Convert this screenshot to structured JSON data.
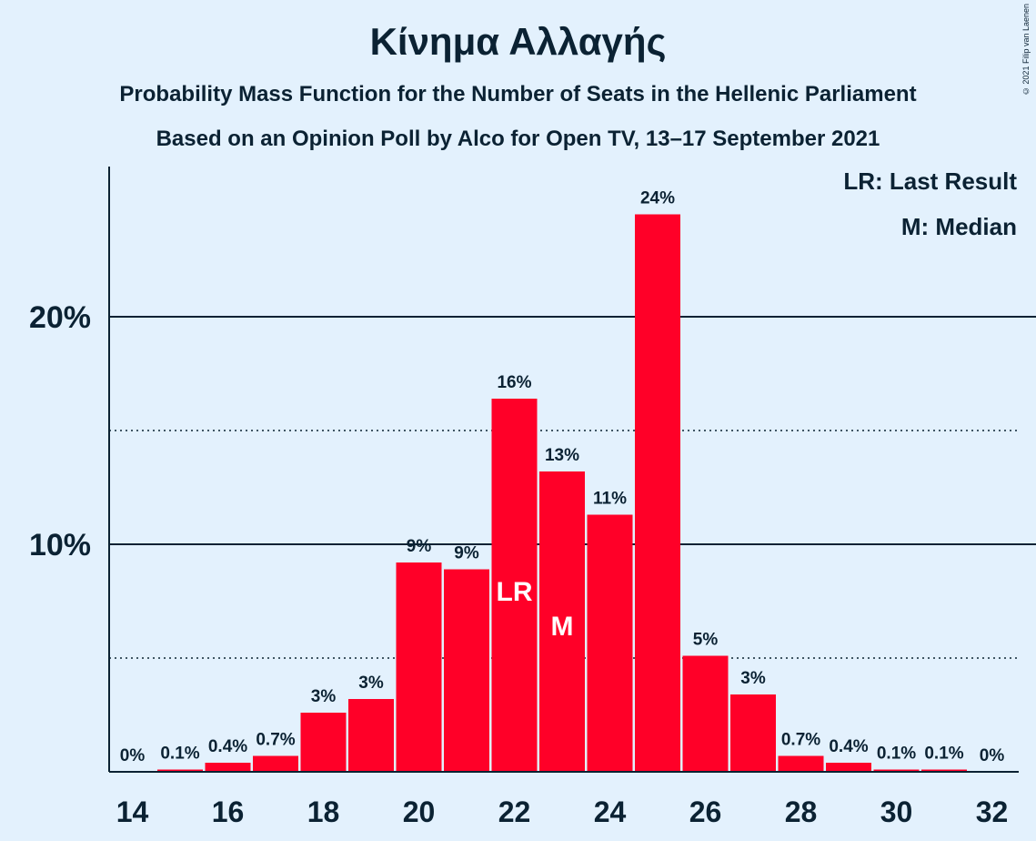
{
  "header": {
    "title": "Κίνημα Αλλαγής",
    "subtitle1": "Probability Mass Function for the Number of Seats in the Hellenic Parliament",
    "subtitle2": "Based on an Opinion Poll by Alco for Open TV, 13–17 September 2021",
    "copyright": "© 2021 Filip van Laenen"
  },
  "legend": {
    "lr": "LR: Last Result",
    "m": "M: Median"
  },
  "colors": {
    "bar": "#ff0028",
    "background": "#e3f1fd",
    "text": "#0b2233"
  },
  "chart_data": {
    "type": "bar",
    "title": "Κίνημα Αλλαγής",
    "x": [
      14,
      15,
      16,
      17,
      18,
      19,
      20,
      21,
      22,
      23,
      24,
      25,
      26,
      27,
      28,
      29,
      30,
      31,
      32
    ],
    "values": [
      0,
      0.1,
      0.4,
      0.7,
      2.6,
      3.2,
      9.2,
      8.9,
      16.4,
      13.2,
      11.3,
      24.5,
      5.1,
      3.4,
      0.7,
      0.4,
      0.1,
      0.1,
      0
    ],
    "labels": [
      "0%",
      "0.1%",
      "0.4%",
      "0.7%",
      "3%",
      "3%",
      "9%",
      "9%",
      "16%",
      "13%",
      "11%",
      "24%",
      "5%",
      "3%",
      "0.7%",
      "0.4%",
      "0.1%",
      "0.1%",
      "0%"
    ],
    "xticks": [
      "14",
      "16",
      "18",
      "20",
      "22",
      "24",
      "26",
      "28",
      "30",
      "32"
    ],
    "yticks": [
      {
        "value": 10,
        "label": "10%"
      },
      {
        "value": 20,
        "label": "20%"
      }
    ],
    "dotted_gridlines": [
      5,
      15
    ],
    "ylim": [
      0,
      26.6
    ],
    "grid": true,
    "legend_position": "top-right",
    "markers": [
      {
        "x": 22,
        "text": "LR"
      },
      {
        "x": 23,
        "text": "M"
      }
    ]
  }
}
